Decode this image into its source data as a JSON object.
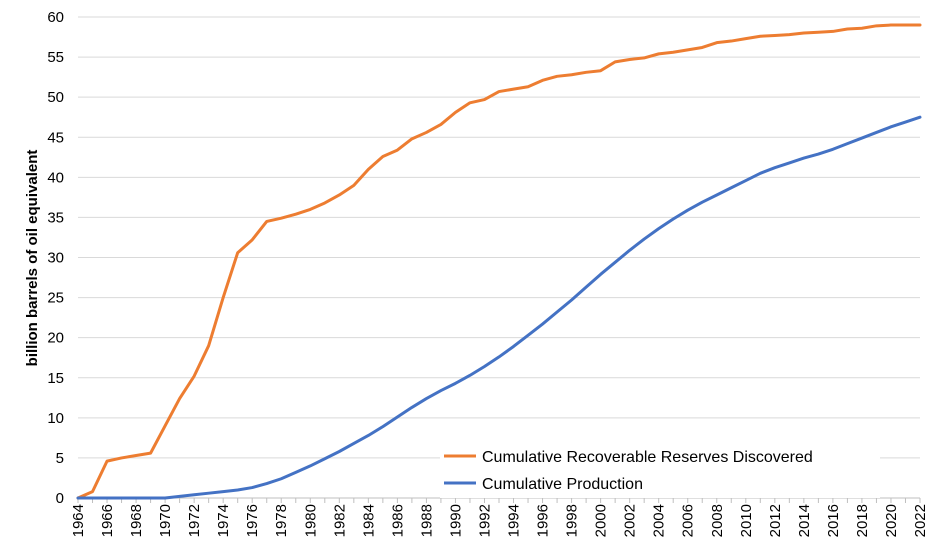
{
  "chart_data": {
    "type": "line",
    "title": "",
    "xlabel": "",
    "ylabel": "billion barrels of oil equivalent",
    "ylim": [
      0,
      60
    ],
    "yticks": [
      0,
      5,
      10,
      15,
      20,
      25,
      30,
      35,
      40,
      45,
      50,
      55,
      60
    ],
    "xlim": [
      1964,
      2022
    ],
    "xticks": [
      1964,
      1966,
      1968,
      1970,
      1972,
      1974,
      1976,
      1978,
      1980,
      1982,
      1984,
      1986,
      1988,
      1990,
      1992,
      1994,
      1996,
      1998,
      2000,
      2002,
      2004,
      2006,
      2008,
      2010,
      2012,
      2014,
      2016,
      2018,
      2020,
      2022
    ],
    "grid": "horizontal",
    "legend_position": "bottom-right",
    "x": [
      1964,
      1965,
      1966,
      1967,
      1968,
      1969,
      1970,
      1971,
      1972,
      1973,
      1974,
      1975,
      1976,
      1977,
      1978,
      1979,
      1980,
      1981,
      1982,
      1983,
      1984,
      1985,
      1986,
      1987,
      1988,
      1989,
      1990,
      1991,
      1992,
      1993,
      1994,
      1995,
      1996,
      1997,
      1998,
      1999,
      2000,
      2001,
      2002,
      2003,
      2004,
      2005,
      2006,
      2007,
      2008,
      2009,
      2010,
      2011,
      2012,
      2013,
      2014,
      2015,
      2016,
      2017,
      2018,
      2019,
      2020,
      2021,
      2022
    ],
    "series": [
      {
        "name": "Cumulative Recoverable Reserves Discovered",
        "color": "#ED7D31",
        "values": [
          0,
          0.8,
          4.6,
          5.0,
          5.3,
          5.6,
          9.0,
          12.4,
          15.2,
          19.0,
          25.0,
          30.6,
          32.2,
          34.5,
          34.9,
          35.4,
          36.0,
          36.8,
          37.8,
          39.0,
          41.0,
          42.6,
          43.4,
          44.8,
          45.6,
          46.6,
          48.1,
          49.3,
          49.7,
          50.7,
          51.0,
          51.3,
          52.1,
          52.6,
          52.8,
          53.1,
          53.3,
          54.4,
          54.7,
          54.9,
          55.4,
          55.6,
          55.9,
          56.2,
          56.8,
          57.0,
          57.3,
          57.6,
          57.7,
          57.8,
          58.0,
          58.1,
          58.2,
          58.5,
          58.6,
          58.9,
          59.0,
          59.0,
          59.0
        ]
      },
      {
        "name": "Cumulative Production",
        "color": "#4472C4",
        "values": [
          0,
          0,
          0,
          0,
          0,
          0,
          0,
          0.2,
          0.4,
          0.6,
          0.8,
          1.0,
          1.3,
          1.8,
          2.4,
          3.2,
          4.0,
          4.9,
          5.8,
          6.8,
          7.8,
          8.9,
          10.1,
          11.3,
          12.4,
          13.4,
          14.3,
          15.3,
          16.4,
          17.6,
          18.9,
          20.3,
          21.7,
          23.2,
          24.7,
          26.3,
          27.9,
          29.4,
          30.9,
          32.3,
          33.6,
          34.8,
          35.9,
          36.9,
          37.8,
          38.7,
          39.6,
          40.5,
          41.2,
          41.8,
          42.4,
          42.9,
          43.5,
          44.2,
          44.9,
          45.6,
          46.3,
          46.9,
          47.5
        ]
      }
    ]
  }
}
